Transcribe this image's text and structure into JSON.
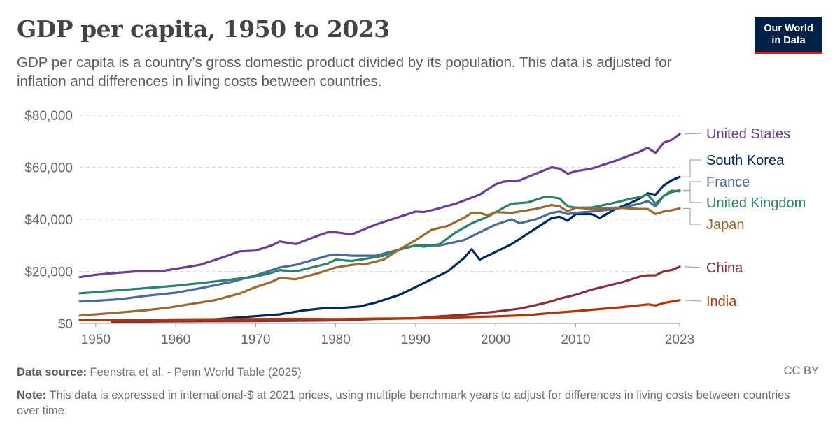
{
  "header": {
    "title": "GDP per capita, 1950 to 2023",
    "subtitle": "GDP per capita is a country’s gross domestic product divided by its population. This data is adjusted for inflation and differences in living costs between countries.",
    "logo_line1": "Our World",
    "logo_line2": "in Data"
  },
  "footer": {
    "source_label": "Data source:",
    "source_text": "Feenstra et al. - Penn World Table (2025)",
    "note_label": "Note:",
    "note_text": "This data is expressed in international-$ at 2021 prices, using multiple benchmark years to adjust for differences in living costs between countries over time.",
    "license": "CC BY"
  },
  "chart_data": {
    "type": "line",
    "title": "GDP per capita, 1950 to 2023",
    "xlim": [
      1948,
      2023
    ],
    "ylim": [
      0,
      80000
    ],
    "y_ticks": [
      0,
      20000,
      40000,
      60000,
      80000
    ],
    "y_tick_labels": [
      "$0",
      "$20,000",
      "$40,000",
      "$60,000",
      "$80,000"
    ],
    "x_ticks": [
      1950,
      1960,
      1970,
      1980,
      1990,
      2000,
      2010,
      2023
    ],
    "x_tick_labels": [
      "1950",
      "1960",
      "1970",
      "1980",
      "1990",
      "2000",
      "2010",
      "2023"
    ],
    "grid": "horizontal dashed",
    "legend": "line-end labels, right",
    "series": [
      {
        "name": "United States",
        "color": "#6d3e91",
        "points": [
          [
            1948,
            17800
          ],
          [
            1950,
            18700
          ],
          [
            1952,
            19300
          ],
          [
            1955,
            20000
          ],
          [
            1958,
            20000
          ],
          [
            1960,
            21000
          ],
          [
            1963,
            22500
          ],
          [
            1966,
            25500
          ],
          [
            1968,
            27700
          ],
          [
            1970,
            28000
          ],
          [
            1972,
            30000
          ],
          [
            1973,
            31500
          ],
          [
            1975,
            30500
          ],
          [
            1978,
            34000
          ],
          [
            1979,
            35000
          ],
          [
            1980,
            35000
          ],
          [
            1982,
            34200
          ],
          [
            1983,
            35500
          ],
          [
            1985,
            38000
          ],
          [
            1988,
            41000
          ],
          [
            1990,
            43000
          ],
          [
            1991,
            42800
          ],
          [
            1992,
            43500
          ],
          [
            1995,
            46000
          ],
          [
            1998,
            49500
          ],
          [
            2000,
            53500
          ],
          [
            2001,
            54500
          ],
          [
            2003,
            55000
          ],
          [
            2005,
            57500
          ],
          [
            2007,
            60000
          ],
          [
            2008,
            59500
          ],
          [
            2009,
            57500
          ],
          [
            2010,
            58500
          ],
          [
            2012,
            59500
          ],
          [
            2015,
            62500
          ],
          [
            2018,
            66000
          ],
          [
            2019,
            67500
          ],
          [
            2020,
            65500
          ],
          [
            2021,
            69500
          ],
          [
            2022,
            70500
          ],
          [
            2023,
            72800
          ]
        ]
      },
      {
        "name": "South Korea",
        "color": "#00295b",
        "points": [
          [
            1953,
            1000
          ],
          [
            1960,
            1300
          ],
          [
            1965,
            1600
          ],
          [
            1970,
            2800
          ],
          [
            1973,
            3500
          ],
          [
            1976,
            5000
          ],
          [
            1979,
            6000
          ],
          [
            1980,
            5800
          ],
          [
            1983,
            6500
          ],
          [
            1985,
            8000
          ],
          [
            1988,
            11000
          ],
          [
            1990,
            14000
          ],
          [
            1992,
            17000
          ],
          [
            1994,
            20000
          ],
          [
            1996,
            25000
          ],
          [
            1997,
            28500
          ],
          [
            1998,
            24500
          ],
          [
            2000,
            27500
          ],
          [
            2002,
            30500
          ],
          [
            2004,
            34500
          ],
          [
            2006,
            38500
          ],
          [
            2007,
            40500
          ],
          [
            2008,
            41000
          ],
          [
            2009,
            39500
          ],
          [
            2010,
            42000
          ],
          [
            2012,
            42000
          ],
          [
            2013,
            40500
          ],
          [
            2015,
            44000
          ],
          [
            2017,
            46500
          ],
          [
            2018,
            48000
          ],
          [
            2019,
            50000
          ],
          [
            2020,
            49500
          ],
          [
            2021,
            53000
          ],
          [
            2022,
            55000
          ],
          [
            2023,
            56300
          ]
        ]
      },
      {
        "name": "France",
        "color": "#4c6a9c",
        "points": [
          [
            1948,
            8400
          ],
          [
            1950,
            8700
          ],
          [
            1953,
            9300
          ],
          [
            1956,
            10500
          ],
          [
            1960,
            11800
          ],
          [
            1963,
            13500
          ],
          [
            1967,
            16000
          ],
          [
            1970,
            18500
          ],
          [
            1973,
            21500
          ],
          [
            1975,
            22500
          ],
          [
            1979,
            26000
          ],
          [
            1980,
            26500
          ],
          [
            1982,
            26000
          ],
          [
            1985,
            26000
          ],
          [
            1990,
            30000
          ],
          [
            1993,
            30000
          ],
          [
            1996,
            32000
          ],
          [
            1998,
            35000
          ],
          [
            2000,
            38000
          ],
          [
            2002,
            40000
          ],
          [
            2003,
            38500
          ],
          [
            2005,
            40000
          ],
          [
            2007,
            42500
          ],
          [
            2008,
            43000
          ],
          [
            2009,
            42000
          ],
          [
            2010,
            42500
          ],
          [
            2012,
            43000
          ],
          [
            2015,
            44000
          ],
          [
            2018,
            46000
          ],
          [
            2019,
            47000
          ],
          [
            2020,
            45000
          ],
          [
            2021,
            49000
          ],
          [
            2022,
            50500
          ],
          [
            2023,
            51200
          ]
        ]
      },
      {
        "name": "United Kingdom",
        "color": "#2c8465",
        "points": [
          [
            1948,
            11600
          ],
          [
            1950,
            12000
          ],
          [
            1953,
            12800
          ],
          [
            1956,
            13500
          ],
          [
            1960,
            14500
          ],
          [
            1963,
            15500
          ],
          [
            1966,
            16500
          ],
          [
            1970,
            18000
          ],
          [
            1972,
            19500
          ],
          [
            1973,
            20500
          ],
          [
            1975,
            20000
          ],
          [
            1979,
            23000
          ],
          [
            1980,
            24500
          ],
          [
            1982,
            24000
          ],
          [
            1984,
            25000
          ],
          [
            1986,
            26000
          ],
          [
            1988,
            28500
          ],
          [
            1990,
            30000
          ],
          [
            1991,
            29500
          ],
          [
            1993,
            30500
          ],
          [
            1995,
            35000
          ],
          [
            1997,
            38500
          ],
          [
            1999,
            41000
          ],
          [
            2001,
            44500
          ],
          [
            2002,
            46000
          ],
          [
            2004,
            46500
          ],
          [
            2006,
            48500
          ],
          [
            2007,
            48500
          ],
          [
            2008,
            48000
          ],
          [
            2009,
            45000
          ],
          [
            2010,
            44500
          ],
          [
            2012,
            44500
          ],
          [
            2015,
            46500
          ],
          [
            2017,
            48000
          ],
          [
            2018,
            48500
          ],
          [
            2019,
            49500
          ],
          [
            2020,
            46000
          ],
          [
            2021,
            49000
          ],
          [
            2022,
            51000
          ],
          [
            2023,
            50800
          ]
        ]
      },
      {
        "name": "Japan",
        "color": "#9a6a2f",
        "points": [
          [
            1948,
            3000
          ],
          [
            1950,
            3500
          ],
          [
            1953,
            4200
          ],
          [
            1956,
            5000
          ],
          [
            1959,
            6000
          ],
          [
            1962,
            7500
          ],
          [
            1965,
            9000
          ],
          [
            1968,
            11500
          ],
          [
            1970,
            14000
          ],
          [
            1972,
            16000
          ],
          [
            1973,
            17500
          ],
          [
            1975,
            17000
          ],
          [
            1978,
            19500
          ],
          [
            1980,
            21500
          ],
          [
            1982,
            22500
          ],
          [
            1984,
            23000
          ],
          [
            1986,
            24500
          ],
          [
            1988,
            28500
          ],
          [
            1990,
            32000
          ],
          [
            1992,
            36000
          ],
          [
            1994,
            37500
          ],
          [
            1996,
            40500
          ],
          [
            1997,
            42500
          ],
          [
            1998,
            42500
          ],
          [
            1999,
            41500
          ],
          [
            2000,
            42800
          ],
          [
            2002,
            42500
          ],
          [
            2005,
            44000
          ],
          [
            2007,
            45500
          ],
          [
            2008,
            45000
          ],
          [
            2009,
            43000
          ],
          [
            2010,
            44500
          ],
          [
            2012,
            44000
          ],
          [
            2015,
            44500
          ],
          [
            2018,
            44000
          ],
          [
            2019,
            44000
          ],
          [
            2020,
            42000
          ],
          [
            2021,
            43000
          ],
          [
            2022,
            43500
          ],
          [
            2023,
            44200
          ]
        ]
      },
      {
        "name": "China",
        "color": "#883039",
        "points": [
          [
            1952,
            600
          ],
          [
            1960,
            800
          ],
          [
            1970,
            900
          ],
          [
            1978,
            1100
          ],
          [
            1980,
            1200
          ],
          [
            1985,
            1700
          ],
          [
            1990,
            2000
          ],
          [
            1993,
            2700
          ],
          [
            1996,
            3300
          ],
          [
            2000,
            4500
          ],
          [
            2003,
            5700
          ],
          [
            2005,
            7000
          ],
          [
            2007,
            8500
          ],
          [
            2008,
            9500
          ],
          [
            2010,
            11000
          ],
          [
            2012,
            13000
          ],
          [
            2014,
            14500
          ],
          [
            2016,
            16000
          ],
          [
            2018,
            18000
          ],
          [
            2019,
            18500
          ],
          [
            2020,
            18500
          ],
          [
            2021,
            20000
          ],
          [
            2022,
            20500
          ],
          [
            2023,
            21800
          ]
        ]
      },
      {
        "name": "India",
        "color": "#b13507",
        "points": [
          [
            1948,
            1300
          ],
          [
            1950,
            1300
          ],
          [
            1955,
            1350
          ],
          [
            1960,
            1500
          ],
          [
            1965,
            1600
          ],
          [
            1970,
            1700
          ],
          [
            1975,
            1750
          ],
          [
            1980,
            1650
          ],
          [
            1985,
            1850
          ],
          [
            1990,
            2000
          ],
          [
            1995,
            2300
          ],
          [
            2000,
            2700
          ],
          [
            2004,
            3200
          ],
          [
            2007,
            4000
          ],
          [
            2010,
            4700
          ],
          [
            2013,
            5500
          ],
          [
            2016,
            6300
          ],
          [
            2019,
            7300
          ],
          [
            2020,
            6900
          ],
          [
            2021,
            7800
          ],
          [
            2022,
            8400
          ],
          [
            2023,
            8900
          ]
        ]
      }
    ]
  }
}
